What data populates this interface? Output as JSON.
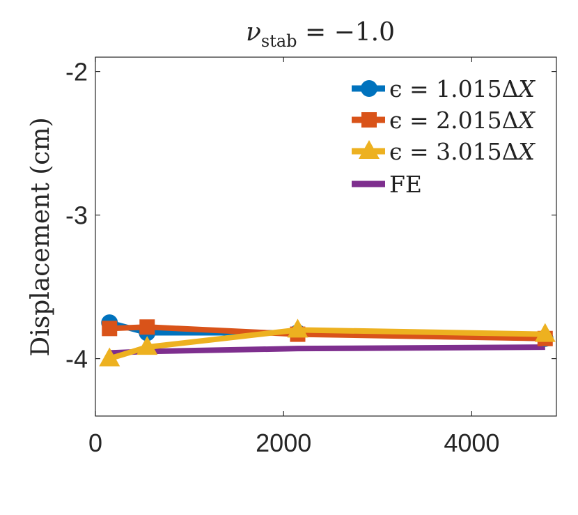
{
  "chart_data": {
    "type": "line",
    "title": {
      "base": "ν",
      "subscript": "stab",
      "rest": " = −1.0"
    },
    "xlabel": "",
    "ylabel": "Displacement (cm)",
    "xlim": [
      0,
      4900
    ],
    "ylim": [
      -4.4,
      -1.9
    ],
    "xticks": [
      0,
      2000,
      4000
    ],
    "xtick_labels": [
      "0",
      "2000",
      "4000"
    ],
    "yticks": [
      -2,
      -3,
      -4
    ],
    "ytick_labels": [
      "-2",
      "-3",
      "-4"
    ],
    "legend_position": "top-right",
    "series": [
      {
        "name": "ϵ = 1.015ΔX",
        "label_head": "ϵ = 1.015Δ",
        "label_tail": "X",
        "color": "#0072BD",
        "marker": "circle",
        "x": [
          150,
          550,
          2150,
          4780
        ],
        "y": [
          -3.75,
          -3.82,
          -3.82,
          -3.86
        ]
      },
      {
        "name": "ϵ = 2.015ΔX",
        "label_head": "ϵ = 2.015Δ",
        "label_tail": "X",
        "color": "#D95319",
        "marker": "square",
        "x": [
          150,
          550,
          2150,
          4780
        ],
        "y": [
          -3.79,
          -3.78,
          -3.83,
          -3.86
        ]
      },
      {
        "name": "ϵ = 3.015ΔX",
        "label_head": "ϵ = 3.015Δ",
        "label_tail": "X",
        "color": "#EDB120",
        "marker": "triangle",
        "x": [
          150,
          550,
          2150,
          4780
        ],
        "y": [
          -4.0,
          -3.92,
          -3.8,
          -3.83
        ]
      },
      {
        "name": "FE",
        "label_head": "FE",
        "label_tail": "",
        "color": "#7E2F8E",
        "marker": "none",
        "x": [
          150,
          550,
          2150,
          4780
        ],
        "y": [
          -3.96,
          -3.95,
          -3.93,
          -3.92
        ]
      }
    ]
  }
}
